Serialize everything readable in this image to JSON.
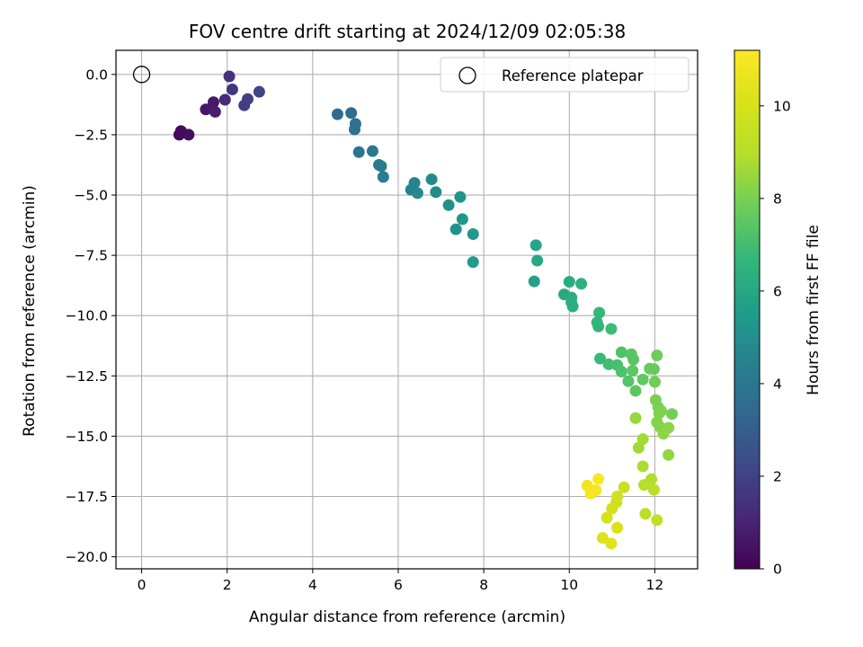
{
  "chart_data": {
    "type": "scatter",
    "title": "FOV centre drift starting at 2024/12/09 02:05:38",
    "xlabel": "Angular distance from reference (arcmin)",
    "ylabel": "Rotation from reference (arcmin)",
    "xlim": [
      -0.6,
      13.0
    ],
    "ylim": [
      -20.5,
      1.0
    ],
    "xticks": [
      0,
      2,
      4,
      6,
      8,
      10,
      12
    ],
    "yticks": [
      0.0,
      -2.5,
      -5.0,
      -7.5,
      -10.0,
      -12.5,
      -15.0,
      -17.5,
      -20.0
    ],
    "grid": true,
    "legend": {
      "position": "top-right",
      "entries": [
        "Reference platepar"
      ]
    },
    "reference_point": {
      "x": 0,
      "y": 0,
      "label": "Reference platepar"
    },
    "colorbar": {
      "label": "Hours from first FF file",
      "colormap": "viridis",
      "range": [
        0,
        11.2
      ],
      "ticks": [
        0,
        2,
        4,
        6,
        8,
        10
      ]
    },
    "points": [
      {
        "x": 0.88,
        "y": -2.5,
        "c": 0.2
      },
      {
        "x": 0.92,
        "y": -2.35,
        "c": 0.3
      },
      {
        "x": 1.1,
        "y": -2.5,
        "c": 0.4
      },
      {
        "x": 1.5,
        "y": -1.45,
        "c": 0.6
      },
      {
        "x": 1.68,
        "y": -1.15,
        "c": 0.7
      },
      {
        "x": 1.72,
        "y": -1.55,
        "c": 0.8
      },
      {
        "x": 1.95,
        "y": -1.05,
        "c": 1.2
      },
      {
        "x": 2.05,
        "y": -0.08,
        "c": 1.5
      },
      {
        "x": 2.12,
        "y": -0.62,
        "c": 1.6
      },
      {
        "x": 2.4,
        "y": -1.28,
        "c": 1.8
      },
      {
        "x": 2.48,
        "y": -1.02,
        "c": 1.9
      },
      {
        "x": 2.75,
        "y": -0.72,
        "c": 2.1
      },
      {
        "x": 4.58,
        "y": -1.65,
        "c": 3.5
      },
      {
        "x": 4.9,
        "y": -1.6,
        "c": 3.6
      },
      {
        "x": 5.0,
        "y": -2.05,
        "c": 3.7
      },
      {
        "x": 4.98,
        "y": -2.28,
        "c": 3.8
      },
      {
        "x": 5.08,
        "y": -3.22,
        "c": 3.9
      },
      {
        "x": 5.4,
        "y": -3.18,
        "c": 4.0
      },
      {
        "x": 5.55,
        "y": -3.75,
        "c": 4.1
      },
      {
        "x": 5.6,
        "y": -3.8,
        "c": 4.2
      },
      {
        "x": 5.65,
        "y": -4.25,
        "c": 4.3
      },
      {
        "x": 6.3,
        "y": -4.78,
        "c": 4.5
      },
      {
        "x": 6.38,
        "y": -4.5,
        "c": 4.6
      },
      {
        "x": 6.45,
        "y": -4.92,
        "c": 4.7
      },
      {
        "x": 6.78,
        "y": -4.35,
        "c": 4.8
      },
      {
        "x": 6.88,
        "y": -4.88,
        "c": 4.9
      },
      {
        "x": 7.18,
        "y": -5.42,
        "c": 5.0
      },
      {
        "x": 7.35,
        "y": -6.42,
        "c": 5.1
      },
      {
        "x": 7.45,
        "y": -5.08,
        "c": 5.2
      },
      {
        "x": 7.5,
        "y": -6.0,
        "c": 5.3
      },
      {
        "x": 7.75,
        "y": -6.62,
        "c": 5.4
      },
      {
        "x": 7.75,
        "y": -7.78,
        "c": 5.5
      },
      {
        "x": 9.18,
        "y": -8.58,
        "c": 5.8
      },
      {
        "x": 9.22,
        "y": -7.08,
        "c": 5.9
      },
      {
        "x": 9.25,
        "y": -7.72,
        "c": 6.0
      },
      {
        "x": 9.88,
        "y": -9.12,
        "c": 6.1
      },
      {
        "x": 10.0,
        "y": -8.6,
        "c": 6.2
      },
      {
        "x": 10.05,
        "y": -9.25,
        "c": 6.2
      },
      {
        "x": 10.05,
        "y": -9.45,
        "c": 6.3
      },
      {
        "x": 10.08,
        "y": -9.62,
        "c": 6.3
      },
      {
        "x": 10.28,
        "y": -8.68,
        "c": 6.4
      },
      {
        "x": 10.65,
        "y": -10.28,
        "c": 6.6
      },
      {
        "x": 10.68,
        "y": -10.45,
        "c": 6.6
      },
      {
        "x": 10.7,
        "y": -9.88,
        "c": 6.7
      },
      {
        "x": 10.72,
        "y": -11.78,
        "c": 6.8
      },
      {
        "x": 10.98,
        "y": -10.55,
        "c": 6.9
      },
      {
        "x": 10.92,
        "y": -12.02,
        "c": 7.0
      },
      {
        "x": 11.12,
        "y": -12.05,
        "c": 7.1
      },
      {
        "x": 11.22,
        "y": -11.52,
        "c": 7.2
      },
      {
        "x": 11.22,
        "y": -12.32,
        "c": 7.2
      },
      {
        "x": 11.38,
        "y": -12.72,
        "c": 7.3
      },
      {
        "x": 11.45,
        "y": -11.6,
        "c": 7.4
      },
      {
        "x": 11.5,
        "y": -11.82,
        "c": 7.4
      },
      {
        "x": 11.48,
        "y": -12.28,
        "c": 7.5
      },
      {
        "x": 11.55,
        "y": -13.12,
        "c": 7.5
      },
      {
        "x": 11.72,
        "y": -12.65,
        "c": 7.6
      },
      {
        "x": 11.88,
        "y": -12.2,
        "c": 7.7
      },
      {
        "x": 11.98,
        "y": -12.22,
        "c": 7.7
      },
      {
        "x": 12.0,
        "y": -12.75,
        "c": 7.8
      },
      {
        "x": 12.05,
        "y": -11.65,
        "c": 7.8
      },
      {
        "x": 12.4,
        "y": -14.08,
        "c": 7.9
      },
      {
        "x": 12.02,
        "y": -13.5,
        "c": 8.0
      },
      {
        "x": 12.08,
        "y": -13.8,
        "c": 8.0
      },
      {
        "x": 12.1,
        "y": -14.05,
        "c": 8.1
      },
      {
        "x": 12.15,
        "y": -13.95,
        "c": 8.1
      },
      {
        "x": 12.05,
        "y": -14.42,
        "c": 8.2
      },
      {
        "x": 12.12,
        "y": -14.62,
        "c": 8.2
      },
      {
        "x": 12.2,
        "y": -14.9,
        "c": 8.3
      },
      {
        "x": 12.32,
        "y": -14.65,
        "c": 8.3
      },
      {
        "x": 12.32,
        "y": -15.78,
        "c": 8.4
      },
      {
        "x": 11.55,
        "y": -14.25,
        "c": 8.5
      },
      {
        "x": 11.62,
        "y": -15.48,
        "c": 8.6
      },
      {
        "x": 11.72,
        "y": -15.12,
        "c": 8.7
      },
      {
        "x": 11.72,
        "y": -16.25,
        "c": 8.8
      },
      {
        "x": 11.92,
        "y": -16.78,
        "c": 8.9
      },
      {
        "x": 11.75,
        "y": -17.02,
        "c": 9.0
      },
      {
        "x": 11.98,
        "y": -17.22,
        "c": 9.1
      },
      {
        "x": 11.78,
        "y": -18.22,
        "c": 9.2
      },
      {
        "x": 12.05,
        "y": -18.48,
        "c": 9.3
      },
      {
        "x": 11.28,
        "y": -17.12,
        "c": 9.6
      },
      {
        "x": 11.12,
        "y": -17.5,
        "c": 9.7
      },
      {
        "x": 11.1,
        "y": -17.75,
        "c": 9.8
      },
      {
        "x": 11.0,
        "y": -18.0,
        "c": 9.9
      },
      {
        "x": 10.88,
        "y": -18.38,
        "c": 10.0
      },
      {
        "x": 11.12,
        "y": -18.8,
        "c": 10.1
      },
      {
        "x": 10.78,
        "y": -19.22,
        "c": 10.2
      },
      {
        "x": 10.98,
        "y": -19.45,
        "c": 10.3
      },
      {
        "x": 10.42,
        "y": -17.05,
        "c": 10.8
      },
      {
        "x": 10.5,
        "y": -17.38,
        "c": 10.9
      },
      {
        "x": 10.62,
        "y": -17.25,
        "c": 11.0
      },
      {
        "x": 10.68,
        "y": -16.78,
        "c": 11.1
      }
    ]
  }
}
